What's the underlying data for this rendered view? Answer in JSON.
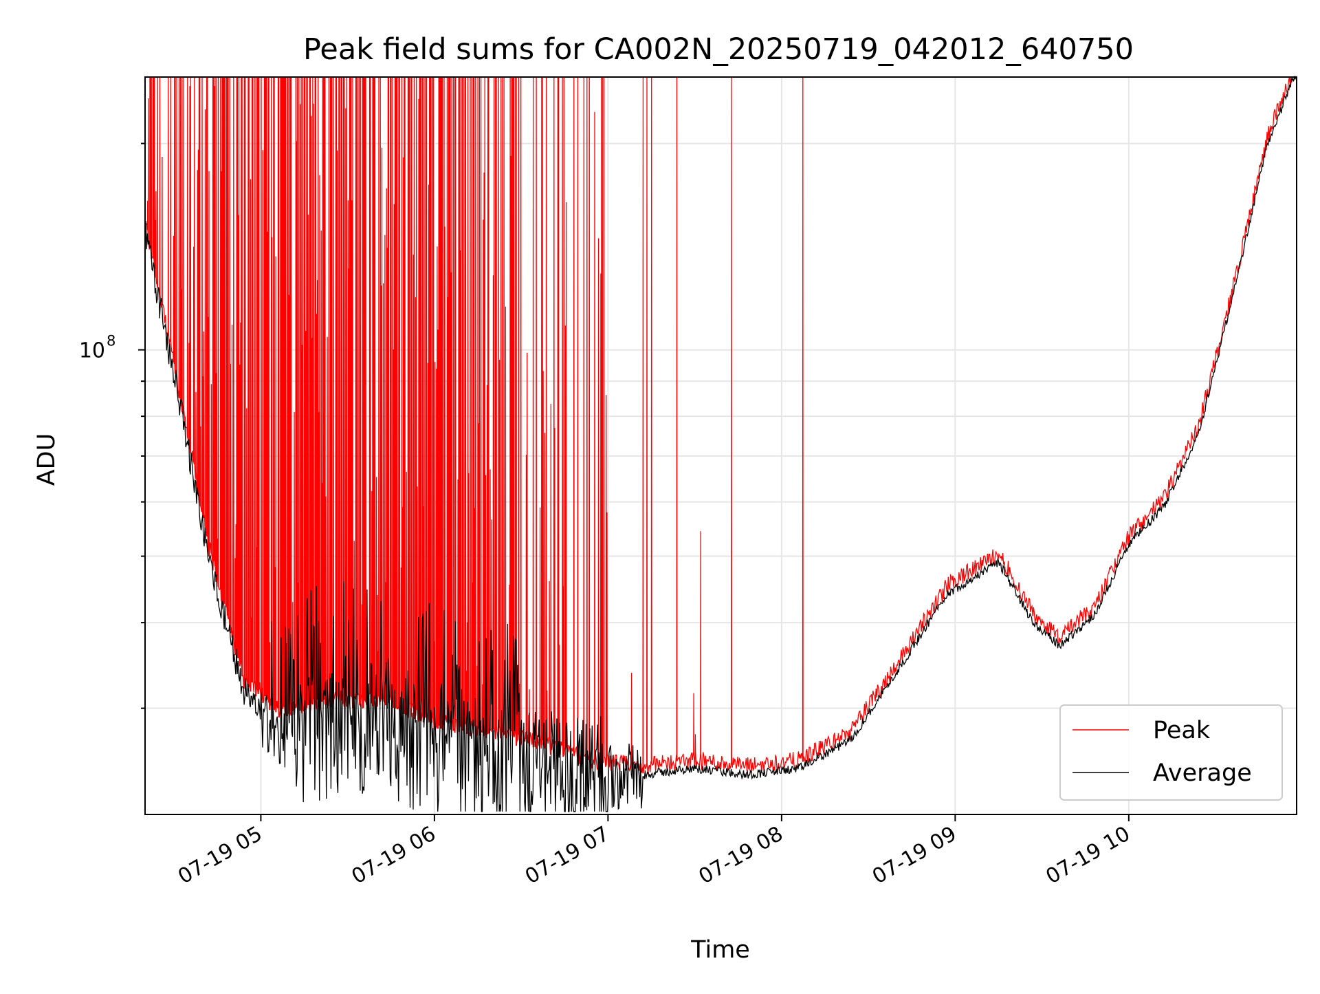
{
  "chart_data": {
    "type": "line",
    "title": "Peak field sums for CA002N_20250719_042012_640750",
    "xlabel": "Time",
    "ylabel": "ADU",
    "yscale": "log",
    "x_start": "07-19 04:20",
    "x_end": "07-19 10:58",
    "xlim_hours": [
      4.333,
      10.967
    ],
    "ylim": [
      21000000,
      250000000
    ],
    "x_ticks": [
      "07-19 05",
      "07-19 06",
      "07-19 07",
      "07-19 08",
      "07-19 09",
      "07-19 10"
    ],
    "x_tick_hours": [
      5,
      6,
      7,
      8,
      9,
      10
    ],
    "y_major_tick": {
      "value": 100000000,
      "base": "10",
      "exp": "8"
    },
    "y_minor_ticks": [
      30000000,
      40000000,
      50000000,
      60000000,
      70000000,
      80000000,
      90000000,
      200000000
    ],
    "grid": true,
    "legend_position": "lower-right",
    "series": [
      {
        "name": "Peak",
        "color": "#ff0000",
        "note": "spiky; many excursions to top of plot until ~07:45, rare spikes afterwards",
        "x_hours": [
          4.33,
          4.5,
          4.7,
          4.9,
          5.1,
          5.4,
          5.7,
          6.0,
          6.3,
          6.6,
          6.9,
          7.2,
          7.5,
          7.8,
          8.1,
          8.4,
          8.7,
          8.95,
          9.25,
          9.45,
          9.6,
          9.8,
          10.0,
          10.2,
          10.4,
          10.6,
          10.8,
          10.95
        ],
        "min_values": [
          150000000,
          92000000,
          50000000,
          32000000,
          29000000,
          30000000,
          30000000,
          28000000,
          27000000,
          26000000,
          24500000,
          24000000,
          24500000,
          24000000,
          24500000,
          27000000,
          35000000,
          44000000,
          49000000,
          40000000,
          37000000,
          41000000,
          52000000,
          59000000,
          75000000,
          120000000,
          200000000,
          250000000
        ],
        "spike_top": 250000000
      },
      {
        "name": "Average",
        "color": "#000000",
        "note": "noisy black trace below red envelope",
        "x_hours": [
          4.33,
          4.5,
          4.7,
          4.9,
          5.1,
          5.4,
          5.7,
          6.0,
          6.3,
          6.6,
          6.9,
          7.2,
          7.5,
          7.8,
          8.1,
          8.4,
          8.7,
          8.95,
          9.25,
          9.45,
          9.6,
          9.8,
          10.0,
          10.2,
          10.4,
          10.6,
          10.8,
          10.95
        ],
        "values": [
          150000000,
          92000000,
          50000000,
          32000000,
          27000000,
          28000000,
          29000000,
          26000000,
          25000000,
          24500000,
          24000000,
          24000000,
          24500000,
          24000000,
          24500000,
          27000000,
          35000000,
          44000000,
          49000000,
          40000000,
          37000000,
          41000000,
          52000000,
          59000000,
          75000000,
          120000000,
          200000000,
          250000000
        ]
      }
    ]
  }
}
